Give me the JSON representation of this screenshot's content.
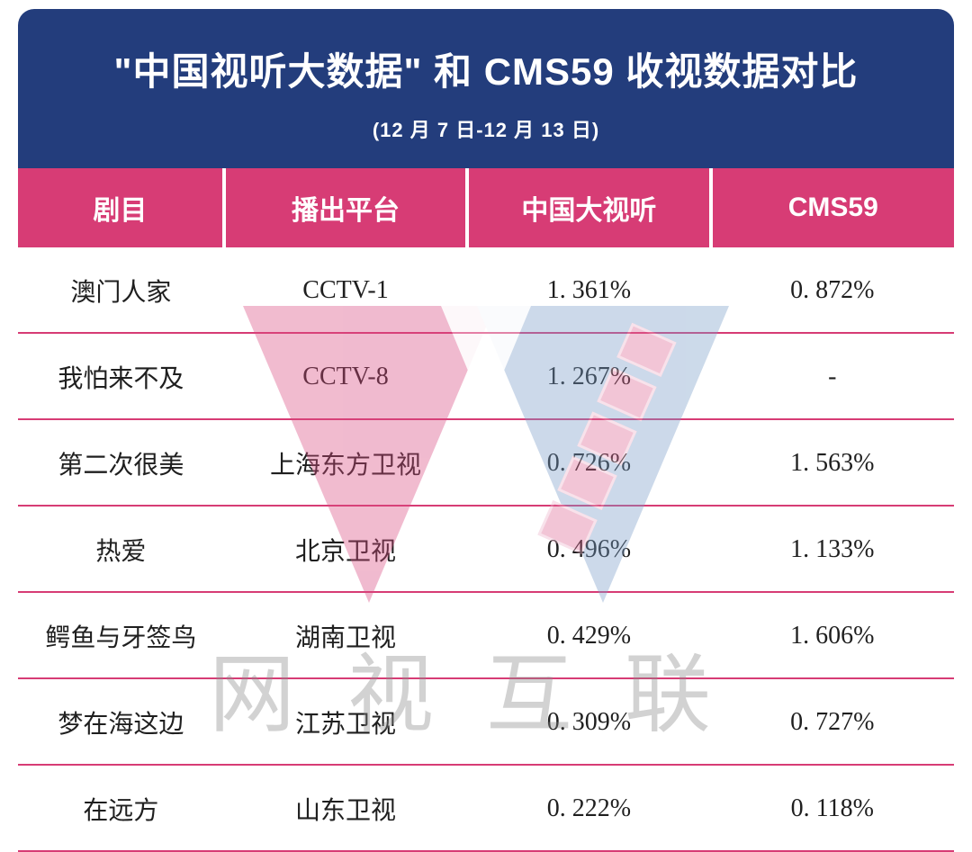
{
  "header": {
    "title": "\"中国视听大数据\" 和 CMS59 收视数据对比",
    "subtitle": "(12 月 7 日-12 月 13 日)"
  },
  "table": {
    "columns": [
      "剧目",
      "播出平台",
      "中国大视听",
      "CMS59"
    ],
    "rows": [
      {
        "show": "澳门人家",
        "platform": "CCTV-1",
        "china": "1. 361%",
        "cms": "0. 872%"
      },
      {
        "show": "我怕来不及",
        "platform": "CCTV-8",
        "china": "1. 267%",
        "cms": "-"
      },
      {
        "show": "第二次很美",
        "platform": "上海东方卫视",
        "china": "0. 726%",
        "cms": "1. 563%"
      },
      {
        "show": "热爱",
        "platform": "北京卫视",
        "china": "0. 496%",
        "cms": "1. 133%"
      },
      {
        "show": "鳄鱼与牙签鸟",
        "platform": "湖南卫视",
        "china": "0. 429%",
        "cms": "1. 606%"
      },
      {
        "show": "梦在海这边",
        "platform": "江苏卫视",
        "china": "0. 309%",
        "cms": "0. 727%"
      },
      {
        "show": "在远方",
        "platform": "山东卫视",
        "china": "0. 222%",
        "cms": "0. 118%"
      }
    ]
  },
  "watermark": {
    "text": "网视互联",
    "color_left": "#d94b82",
    "color_right": "#7a9ec9",
    "strip_color": "#de6a96",
    "text_color": "#8c8c8c"
  },
  "colors": {
    "header_bg": "#233d7c",
    "th_bg": "#d73c75",
    "row_border": "#d73c75",
    "text": "#1f1f1f"
  }
}
